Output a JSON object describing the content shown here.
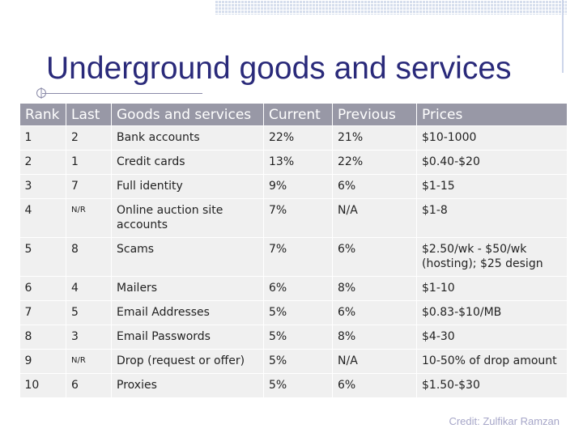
{
  "title": "Underground goods and services",
  "columns": [
    "Rank",
    "Last",
    "Goods and services",
    "Current",
    "Previous",
    "Prices"
  ],
  "rows": [
    [
      "1",
      "2",
      "Bank accounts",
      "22%",
      "21%",
      "$10-1000"
    ],
    [
      "2",
      "1",
      "Credit cards",
      "13%",
      "22%",
      "$0.40-$20"
    ],
    [
      "3",
      "7",
      "Full identity",
      "9%",
      "6%",
      "$1-15"
    ],
    [
      "4",
      "N/R",
      "Online auction site accounts",
      "7%",
      "N/A",
      "$1-8"
    ],
    [
      "5",
      "8",
      "Scams",
      "7%",
      "6%",
      "$2.50/wk - $50/wk (hosting); $25 design"
    ],
    [
      "6",
      "4",
      "Mailers",
      "6%",
      "8%",
      "$1-10"
    ],
    [
      "7",
      "5",
      "Email Addresses",
      "5%",
      "6%",
      "$0.83-$10/MB"
    ],
    [
      "8",
      "3",
      "Email Passwords",
      "5%",
      "8%",
      "$4-30"
    ],
    [
      "9",
      "N/R",
      "Drop (request or offer)",
      "5%",
      "N/A",
      "10-50% of drop amount"
    ],
    [
      "10",
      "6",
      "Proxies",
      "5%",
      "6%",
      "$1.50-$30"
    ]
  ],
  "credit": "Credit: Zulfikar Ramzan",
  "colors": {
    "title": "#2a2a7a",
    "header_bg": "#9898a6",
    "cell_bg": "#f0f0f0",
    "credit": "#a6a6c8"
  }
}
